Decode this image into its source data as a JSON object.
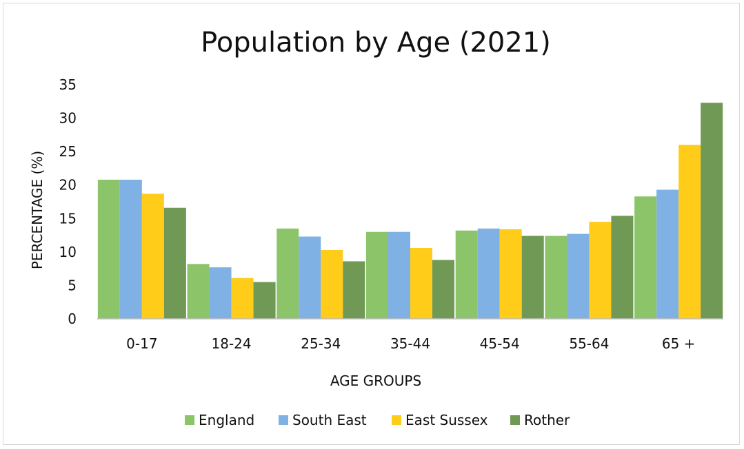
{
  "chart_data": {
    "type": "bar",
    "title": "Population by Age (2021)",
    "xlabel": "AGE GROUPS",
    "ylabel": "PERCENTAGE (%)",
    "ylim": [
      0,
      35
    ],
    "yticks": [
      "0",
      "5",
      "10",
      "15",
      "20",
      "25",
      "30",
      "35"
    ],
    "categories": [
      "0-17",
      "18-24",
      "25-34",
      "35-44",
      "45-54",
      "55-64",
      "65 +"
    ],
    "series": [
      {
        "name": "England",
        "color": "#8cc46a",
        "values": [
          20.8,
          8.2,
          13.5,
          13.0,
          13.2,
          12.4,
          18.3
        ]
      },
      {
        "name": "South East",
        "color": "#7fb1e5",
        "values": [
          20.8,
          7.7,
          12.3,
          13.0,
          13.5,
          12.7,
          19.3
        ]
      },
      {
        "name": "East Sussex",
        "color": "#ffcc1a",
        "values": [
          18.7,
          6.1,
          10.3,
          10.6,
          13.4,
          14.5,
          26.0
        ]
      },
      {
        "name": "Rother",
        "color": "#6f9954",
        "values": [
          16.6,
          5.5,
          8.6,
          8.8,
          12.4,
          15.4,
          32.3
        ]
      }
    ],
    "grid": false,
    "legend": "bottom-center"
  }
}
